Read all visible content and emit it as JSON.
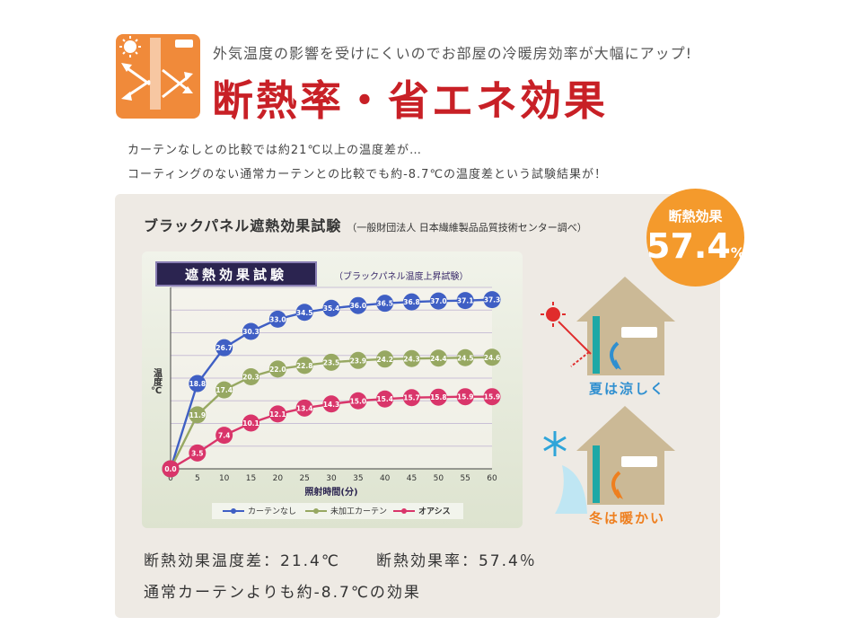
{
  "header": {
    "subtitle": "外気温度の影響を受けにくいのでお部屋の冷暖房効率が大幅にアップ!",
    "title": "断熱率・省エネ効果",
    "icon": "insulation-icon"
  },
  "intro": {
    "line1": "カーテンなしとの比較では約21℃以上の温度差が…",
    "line2": "コーティングのない通常カーテンとの比較でも約-8.7℃の温度差という試験結果が！"
  },
  "panel": {
    "title": "ブラックパネル遮熱効果試験",
    "source": "（一般財団法人 日本繊維製品品質技術センター調べ）"
  },
  "badge": {
    "label": "断熱効果",
    "value": "57.4",
    "unit": "%"
  },
  "chart_data": {
    "type": "line",
    "title": "遮熱効果試験",
    "subtitle": "（ブラックパネル温度上昇試験）",
    "xlabel": "照射時間(分)",
    "ylabel": "温度℃",
    "x": [
      0,
      5,
      10,
      15,
      20,
      25,
      30,
      35,
      40,
      45,
      50,
      55,
      60
    ],
    "xlim": [
      0,
      60
    ],
    "ylim": [
      0,
      40
    ],
    "grid": true,
    "legend_position": "bottom",
    "series": [
      {
        "name": "カーテンなし",
        "color": "#3f5fc4",
        "values": [
          0.0,
          18.8,
          26.7,
          30.3,
          33.0,
          34.5,
          35.4,
          36.0,
          36.5,
          36.8,
          37.0,
          37.1,
          37.3
        ]
      },
      {
        "name": "未加工カーテン",
        "color": "#97a862",
        "values": [
          0.0,
          11.9,
          17.4,
          20.3,
          22.0,
          22.8,
          23.5,
          23.9,
          24.2,
          24.3,
          24.4,
          24.5,
          24.6
        ]
      },
      {
        "name": "オアシス",
        "color": "#d9356a",
        "values": [
          0.0,
          3.5,
          7.4,
          10.1,
          12.1,
          13.4,
          14.3,
          15.0,
          15.4,
          15.7,
          15.8,
          15.9,
          15.9
        ]
      }
    ]
  },
  "illustration": {
    "summer_label": "夏は涼しく",
    "winter_label": "冬は暖かい",
    "sun_icon": "sun-icon",
    "snow_icon": "snowflake-icon",
    "house_icon": "house-icon"
  },
  "results": {
    "line1_a": "断熱効果温度差：21.4℃",
    "line1_b": "断熱効果率：57.4％",
    "line2": "通常カーテンよりも約-8.7℃の効果"
  }
}
